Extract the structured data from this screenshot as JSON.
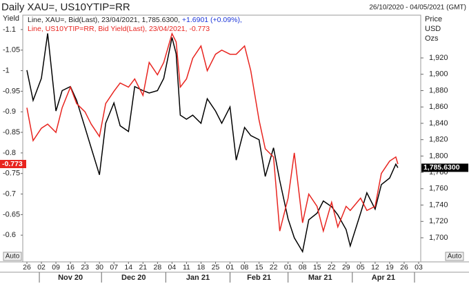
{
  "chart_data": {
    "type": "line",
    "title": "Daily XAU=, US10YTIP=RR",
    "date_range": "26/10/2020 - 04/05/2021 (GMT)",
    "y_label": "Yield",
    "y2_label": [
      "Price",
      "USD",
      "Ozs"
    ],
    "controls": [
      "Auto",
      "Auto"
    ],
    "x": [
      "2020-10-26",
      "2020-10-29",
      "2020-11-02",
      "2020-11-05",
      "2020-11-09",
      "2020-11-12",
      "2020-11-16",
      "2020-11-19",
      "2020-11-23",
      "2020-11-26",
      "2020-11-30",
      "2020-12-03",
      "2020-12-07",
      "2020-12-10",
      "2020-12-14",
      "2020-12-17",
      "2020-12-21",
      "2020-12-24",
      "2020-12-28",
      "2020-12-31",
      "2021-01-04",
      "2021-01-06",
      "2021-01-08",
      "2021-01-11",
      "2021-01-14",
      "2021-01-18",
      "2021-01-21",
      "2021-01-25",
      "2021-01-28",
      "2021-02-01",
      "2021-02-04",
      "2021-02-08",
      "2021-02-11",
      "2021-02-15",
      "2021-02-18",
      "2021-02-22",
      "2021-02-25",
      "2021-03-01",
      "2021-03-04",
      "2021-03-08",
      "2021-03-11",
      "2021-03-15",
      "2021-03-18",
      "2021-03-22",
      "2021-03-25",
      "2021-03-29",
      "2021-03-31",
      "2021-04-05",
      "2021-04-08",
      "2021-04-12",
      "2021-04-15",
      "2021-04-19",
      "2021-04-22",
      "2021-04-23"
    ],
    "xlim": [
      "2020-10-24",
      "2021-05-04"
    ],
    "xticks": [
      {
        "value": "2020-10-26",
        "label": "26"
      },
      {
        "value": "2020-11-02",
        "label": "02"
      },
      {
        "value": "2020-11-09",
        "label": "09"
      },
      {
        "value": "2020-11-16",
        "label": "16"
      },
      {
        "value": "2020-11-23",
        "label": "23"
      },
      {
        "value": "2020-11-30",
        "label": "30"
      },
      {
        "value": "2020-12-07",
        "label": "07"
      },
      {
        "value": "2020-12-14",
        "label": "14"
      },
      {
        "value": "2020-12-21",
        "label": "21"
      },
      {
        "value": "2020-12-28",
        "label": "28"
      },
      {
        "value": "2021-01-04",
        "label": "04"
      },
      {
        "value": "2021-01-11",
        "label": "11"
      },
      {
        "value": "2021-01-18",
        "label": "18"
      },
      {
        "value": "2021-01-25",
        "label": "25"
      },
      {
        "value": "2021-02-01",
        "label": "01"
      },
      {
        "value": "2021-02-08",
        "label": "08"
      },
      {
        "value": "2021-02-15",
        "label": "15"
      },
      {
        "value": "2021-02-22",
        "label": "22"
      },
      {
        "value": "2021-03-01",
        "label": "01"
      },
      {
        "value": "2021-03-08",
        "label": "08"
      },
      {
        "value": "2021-03-15",
        "label": "15"
      },
      {
        "value": "2021-03-22",
        "label": "22"
      },
      {
        "value": "2021-03-29",
        "label": "29"
      },
      {
        "value": "2021-04-05",
        "label": "05"
      },
      {
        "value": "2021-04-12",
        "label": "12"
      },
      {
        "value": "2021-04-19",
        "label": "19"
      },
      {
        "value": "2021-04-26",
        "label": "26"
      },
      {
        "value": "2021-05-03",
        "label": "03"
      }
    ],
    "xgroups": [
      {
        "value": "2020-11-01",
        "label": "Nov 20"
      },
      {
        "value": "2020-12-01",
        "label": "Dec 20"
      },
      {
        "value": "2021-01-01",
        "label": "Jan 21"
      },
      {
        "value": "2021-02-01",
        "label": "Feb 21"
      },
      {
        "value": "2021-03-01",
        "label": "Mar 21"
      },
      {
        "value": "2021-04-01",
        "label": "Apr 21"
      },
      {
        "value": "2021-05-01",
        "label": null
      }
    ],
    "ylim": [
      -0.535,
      -1.135
    ],
    "yticks": [
      -1.1,
      -1.05,
      -1,
      -0.95,
      -0.9,
      -0.85,
      -0.8,
      -0.75,
      -0.7,
      -0.65,
      -0.6
    ],
    "y2lim": [
      1670.5,
      1972.3
    ],
    "y2ticks": [
      {
        "value": 1700,
        "label": "1,700"
      },
      {
        "value": 1720,
        "label": "1,720"
      },
      {
        "value": 1740,
        "label": "1,740"
      },
      {
        "value": 1760,
        "label": "1,760"
      },
      {
        "value": 1780,
        "label": "1,780"
      },
      {
        "value": 1800,
        "label": "1,800"
      },
      {
        "value": 1820,
        "label": "1,820"
      },
      {
        "value": 1840,
        "label": "1,840"
      },
      {
        "value": 1860,
        "label": "1,860"
      },
      {
        "value": 1880,
        "label": "1,880"
      },
      {
        "value": 1900,
        "label": "1,900"
      },
      {
        "value": 1920,
        "label": "1,920"
      }
    ],
    "series": [
      {
        "name": "Line, XAU=, Bid(Last), 23/04/2021, 1,785.6300,",
        "change": "+1.6901 (+0.09%),",
        "color": "#000000",
        "axis": "y2",
        "values": [
          1905,
          1868,
          1895,
          1950,
          1855,
          1880,
          1885,
          1868,
          1835,
          1810,
          1777,
          1840,
          1865,
          1837,
          1830,
          1885,
          1880,
          1877,
          1880,
          1895,
          1945,
          1925,
          1850,
          1845,
          1850,
          1840,
          1870,
          1855,
          1840,
          1860,
          1795,
          1835,
          1825,
          1820,
          1775,
          1810,
          1770,
          1723,
          1700,
          1683,
          1722,
          1730,
          1745,
          1738,
          1728,
          1710,
          1690,
          1730,
          1755,
          1735,
          1765,
          1773,
          1790,
          1785.63
        ],
        "value_labels": [
          null,
          null,
          null,
          null,
          null,
          null,
          null,
          null,
          null,
          null,
          null,
          null,
          null,
          null,
          null,
          null,
          null,
          null,
          null,
          null,
          null,
          null,
          null,
          null,
          null,
          null,
          null,
          null,
          null,
          null,
          null,
          null,
          null,
          null,
          null,
          null,
          null,
          null,
          null,
          null,
          null,
          null,
          null,
          null,
          null,
          null,
          null,
          null,
          null,
          null,
          null,
          null,
          null,
          "1,785.6300"
        ]
      },
      {
        "name": "Line, US10YTIP=RR, Bid Yield(Last), 23/04/2021, -0.773",
        "color": "#e8241f",
        "values": [
          -0.91,
          -0.83,
          -0.86,
          -0.87,
          -0.85,
          -0.91,
          -0.96,
          -0.92,
          -0.9,
          -0.87,
          -0.84,
          -0.92,
          -0.95,
          -0.97,
          -0.96,
          -0.98,
          -0.94,
          -1.02,
          -0.99,
          -1.02,
          -1.09,
          -1.07,
          -0.96,
          -0.98,
          -1.03,
          -1.06,
          -1.0,
          -1.04,
          -1.05,
          -1.04,
          -1.04,
          -1.06,
          -1.0,
          -0.88,
          -0.81,
          -0.79,
          -0.61,
          -0.69,
          -0.8,
          -0.63,
          -0.7,
          -0.67,
          -0.61,
          -0.68,
          -0.62,
          -0.67,
          -0.66,
          -0.69,
          -0.66,
          -0.67,
          -0.75,
          -0.78,
          -0.79,
          -0.773
        ]
      }
    ]
  }
}
